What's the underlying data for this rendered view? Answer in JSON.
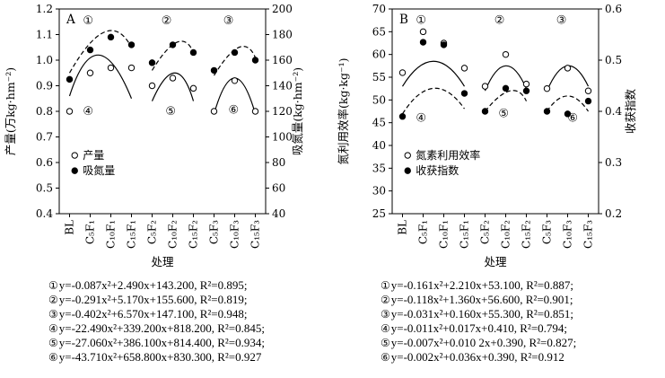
{
  "page": {
    "background": "#ffffff",
    "foreground": "#000000"
  },
  "chart_data": [
    {
      "type": "scatter",
      "panel_label": "A",
      "x_label": "处理",
      "categories": [
        "BL",
        "C₅F₁",
        "C₁₀F₁",
        "C₁₅F₁",
        "C₅F₂",
        "C₁₀F₂",
        "C₁₅F₂",
        "C₅F₃",
        "C₁₀F₃",
        "C₁₅F₃"
      ],
      "left_axis": {
        "label": "产量(万kg·hm⁻²)",
        "min": 0.4,
        "max": 1.2,
        "tick_labels": [
          "1.2",
          "1.1",
          "1.0",
          "0.9",
          "0.8",
          "0.7",
          "0.6",
          "0.5",
          "0.4"
        ]
      },
      "right_axis": {
        "label": "吸氮量(kg·hm⁻²)",
        "min": 40,
        "max": 200,
        "tick_labels": [
          "200",
          "180",
          "160",
          "140",
          "120",
          "100",
          "80",
          "60",
          "40"
        ]
      },
      "series": [
        {
          "name": "产量",
          "axis": "left",
          "marker": "open",
          "values": [
            0.8,
            0.95,
            0.97,
            0.97,
            0.9,
            0.93,
            0.89,
            0.8,
            0.92,
            0.8
          ]
        },
        {
          "name": "吸氮量",
          "axis": "right",
          "marker": "filled",
          "values": [
            145,
            168,
            178,
            172,
            158,
            172,
            166,
            152,
            166,
            160
          ]
        }
      ],
      "legend": [
        {
          "marker": "open",
          "label": "产量"
        },
        {
          "marker": "filled",
          "label": "吸氮量"
        }
      ],
      "curves": [
        {
          "id": "①",
          "style": "dashed",
          "axis": "right",
          "points": [
            [
              0,
              150
            ],
            [
              1.7,
              182
            ],
            [
              3,
              170
            ]
          ],
          "label_pos": [
            0.9,
            1.155
          ]
        },
        {
          "id": "②",
          "style": "dashed",
          "axis": "right",
          "points": [
            [
              4,
              152
            ],
            [
              5.2,
              174
            ],
            [
              6,
              166
            ]
          ],
          "label_pos": [
            4.7,
            1.155
          ]
        },
        {
          "id": "③",
          "style": "dashed",
          "axis": "right",
          "points": [
            [
              7,
              148
            ],
            [
              8.2,
              170
            ],
            [
              9,
              162
            ]
          ],
          "label_pos": [
            7.7,
            1.155
          ]
        },
        {
          "id": "④",
          "style": "solid",
          "axis": "left",
          "points": [
            [
              0,
              0.86
            ],
            [
              1.4,
              1.02
            ],
            [
              3,
              0.85
            ]
          ],
          "label_pos": [
            0.9,
            0.8
          ]
        },
        {
          "id": "⑤",
          "style": "solid",
          "axis": "left",
          "points": [
            [
              4,
              0.84
            ],
            [
              5.1,
              0.95
            ],
            [
              6,
              0.84
            ]
          ],
          "label_pos": [
            4.9,
            0.8
          ]
        },
        {
          "id": "⑥",
          "style": "solid",
          "axis": "left",
          "points": [
            [
              7,
              0.79
            ],
            [
              8,
              0.93
            ],
            [
              9,
              0.79
            ]
          ],
          "label_pos": [
            7.95,
            0.805
          ]
        }
      ],
      "equations": [
        {
          "num": "①",
          "text": "y=-0.087x²+2.490x+143.200, R²=0.895;"
        },
        {
          "num": "②",
          "text": "y=-0.291x²+5.170x+155.600, R²=0.819;"
        },
        {
          "num": "③",
          "text": "y=-0.402x²+6.570x+147.100, R²=0.948;"
        },
        {
          "num": "④",
          "text": "y=-22.490x²+339.200x+818.200, R²=0.845;"
        },
        {
          "num": "⑤",
          "text": "y=-27.060x²+386.100x+814.400, R²=0.934;"
        },
        {
          "num": "⑥",
          "text": "y=-43.710x²+658.800x+830.300, R²=0.927"
        }
      ]
    },
    {
      "type": "scatter",
      "panel_label": "B",
      "x_label": "处理",
      "categories": [
        "BL",
        "C₅F₁",
        "C₁₀F₁",
        "C₁₅F₁",
        "C₅F₂",
        "C₁₀F₂",
        "C₁₅F₂",
        "C₅F₃",
        "C₁₀F₃",
        "C₁₅F₃"
      ],
      "left_axis": {
        "label": "氮利用效率(kg·kg⁻¹)",
        "min": 25,
        "max": 70,
        "tick_labels": [
          "70",
          "65",
          "60",
          "55",
          "50",
          "45",
          "40",
          "35",
          "30",
          "25"
        ]
      },
      "right_axis": {
        "label": "收获指数",
        "min": 0.2,
        "max": 0.6,
        "tick_labels": [
          "0.6",
          "0.5",
          "0.4",
          "0.3",
          "0.2"
        ]
      },
      "series": [
        {
          "name": "氮素利用效率",
          "axis": "left",
          "marker": "open",
          "values": [
            56,
            65,
            62.5,
            57,
            53,
            60,
            53.5,
            52.5,
            57,
            52
          ]
        },
        {
          "name": "收获指数",
          "axis": "right",
          "marker": "filled",
          "values": [
            0.39,
            0.535,
            0.53,
            0.435,
            0.4,
            0.445,
            0.44,
            0.4,
            0.395,
            0.42
          ]
        }
      ],
      "legend": [
        {
          "marker": "open",
          "label": "氮素利用效率"
        },
        {
          "marker": "filled",
          "label": "收获指数"
        }
      ],
      "curves": [
        {
          "id": "①",
          "style": "solid",
          "axis": "left",
          "points": [
            [
              0,
              53
            ],
            [
              1.5,
              58.5
            ],
            [
              3,
              53
            ]
          ],
          "label_pos": [
            0.9,
            67.5
          ]
        },
        {
          "id": "②",
          "style": "solid",
          "axis": "left",
          "points": [
            [
              4,
              52
            ],
            [
              5,
              57.5
            ],
            [
              6,
              52.5
            ]
          ],
          "label_pos": [
            4.7,
            67.5
          ]
        },
        {
          "id": "③",
          "style": "solid",
          "axis": "left",
          "points": [
            [
              7,
              52
            ],
            [
              8,
              57.5
            ],
            [
              9,
              53
            ]
          ],
          "label_pos": [
            7.7,
            67.5
          ]
        },
        {
          "id": "④",
          "style": "dashed",
          "axis": "right",
          "points": [
            [
              0,
              0.395
            ],
            [
              1.5,
              0.445
            ],
            [
              3,
              0.405
            ]
          ],
          "label_pos": [
            0.9,
            46
          ]
        },
        {
          "id": "⑤",
          "style": "dashed",
          "axis": "right",
          "points": [
            [
              4,
              0.4
            ],
            [
              5.2,
              0.44
            ],
            [
              6,
              0.42
            ]
          ],
          "label_pos": [
            4.9,
            47
          ]
        },
        {
          "id": "⑥",
          "style": "dashed",
          "axis": "right",
          "points": [
            [
              7,
              0.4
            ],
            [
              8,
              0.43
            ],
            [
              9,
              0.4
            ]
          ],
          "label_pos": [
            8.25,
            46
          ]
        }
      ],
      "equations": [
        {
          "num": "①",
          "text": "y=-0.161x²+2.210x+53.100, R²=0.887;"
        },
        {
          "num": "②",
          "text": "y=-0.118x²+1.360x+56.600, R²=0.901;"
        },
        {
          "num": "③",
          "text": "y=-0.031x²+0.160x+55.300, R²=0.851;"
        },
        {
          "num": "④",
          "text": "y=-0.011x²+0.017x+0.410, R²=0.794;"
        },
        {
          "num": "⑤",
          "text": "y=-0.007x²+0.010 2x+0.390, R²=0.827;"
        },
        {
          "num": "⑥",
          "text": "y=-0.002x²+0.036x+0.390, R²=0.912"
        }
      ]
    }
  ]
}
